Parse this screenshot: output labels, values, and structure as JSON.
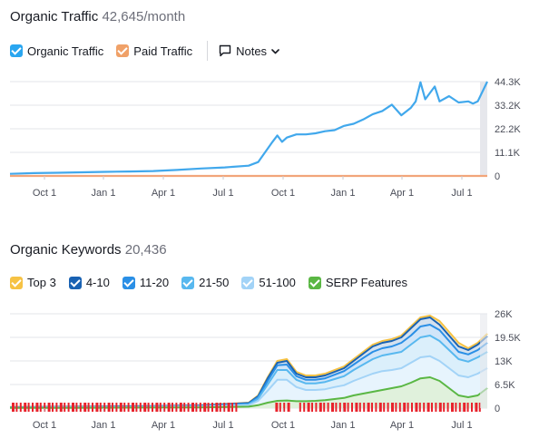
{
  "traffic": {
    "title": "Organic Traffic",
    "value": "42,645",
    "unit": "/month",
    "legend": [
      {
        "label": "Organic Traffic",
        "color": "#2aa6f0"
      },
      {
        "label": "Paid Traffic",
        "color": "#f0a168"
      }
    ],
    "notes_label": "Notes"
  },
  "keywords": {
    "title": "Organic Keywords",
    "value": "20,436",
    "legend": [
      {
        "label": "Top 3",
        "color": "#f6c244"
      },
      {
        "label": "4-10",
        "color": "#1962b3"
      },
      {
        "label": "11-20",
        "color": "#2a8fe6"
      },
      {
        "label": "21-50",
        "color": "#58b8ef"
      },
      {
        "label": "51-100",
        "color": "#a2d3f7"
      },
      {
        "label": "SERP Features",
        "color": "#5ab744"
      }
    ]
  },
  "chart_data": [
    {
      "type": "line",
      "title": "Organic Traffic",
      "x_ticks": [
        "Oct 1",
        "Jan 1",
        "Apr 1",
        "Jul 1",
        "Oct 1",
        "Jan 1",
        "Apr 1",
        "Jul 1"
      ],
      "y_ticks": [
        "44.3K",
        "33.2K",
        "22.2K",
        "11.1K",
        "0"
      ],
      "ylim": [
        0,
        44300
      ],
      "series": [
        {
          "name": "Organic Traffic",
          "color": "#41a8ec",
          "x": [
            0,
            0.05,
            0.1,
            0.15,
            0.2,
            0.25,
            0.3,
            0.35,
            0.4,
            0.45,
            0.5,
            0.52,
            0.55,
            0.56,
            0.57,
            0.58,
            0.6,
            0.62,
            0.64,
            0.66,
            0.68,
            0.7,
            0.72,
            0.74,
            0.76,
            0.78,
            0.8,
            0.82,
            0.84,
            0.85,
            0.86,
            0.87,
            0.88,
            0.89,
            0.9,
            0.92,
            0.94,
            0.96,
            0.97,
            0.98,
            1.0
          ],
          "values": [
            1000,
            1300,
            1500,
            1700,
            1900,
            2100,
            2300,
            2800,
            3500,
            4000,
            4800,
            6500,
            16000,
            19000,
            16000,
            18000,
            19500,
            19500,
            20000,
            21000,
            21500,
            23500,
            24500,
            26500,
            29000,
            30500,
            33500,
            28500,
            32000,
            35000,
            44000,
            36000,
            39000,
            42000,
            35000,
            37500,
            34500,
            35000,
            34000,
            35000,
            44300
          ]
        },
        {
          "name": "Paid Traffic",
          "color": "#f2a57a",
          "x": [
            0,
            1
          ],
          "values": [
            0,
            0
          ]
        }
      ]
    },
    {
      "type": "area",
      "title": "Organic Keywords",
      "x_ticks": [
        "Oct 1",
        "Jan 1",
        "Apr 1",
        "Jul 1",
        "Oct 1",
        "Jan 1",
        "Apr 1",
        "Jul 1"
      ],
      "y_ticks": [
        "26K",
        "19.5K",
        "13K",
        "6.5K",
        "0"
      ],
      "ylim": [
        0,
        26000
      ],
      "x": [
        0,
        0.1,
        0.2,
        0.3,
        0.4,
        0.5,
        0.52,
        0.54,
        0.56,
        0.58,
        0.6,
        0.62,
        0.64,
        0.66,
        0.68,
        0.7,
        0.72,
        0.74,
        0.76,
        0.78,
        0.8,
        0.82,
        0.84,
        0.86,
        0.88,
        0.9,
        0.92,
        0.94,
        0.96,
        0.98,
        1.0
      ],
      "series": [
        {
          "name": "Top 3",
          "color": "#f6c244",
          "values": [
            300,
            400,
            500,
            600,
            800,
            1500,
            3500,
            8500,
            13000,
            13500,
            10000,
            9000,
            9000,
            9500,
            10500,
            11500,
            13500,
            15500,
            17500,
            18500,
            19000,
            20000,
            22500,
            25000,
            25500,
            24000,
            21000,
            18000,
            16500,
            18000,
            20500
          ]
        },
        {
          "name": "4-10",
          "color": "#1962b3",
          "values": [
            250,
            350,
            450,
            550,
            750,
            1400,
            3300,
            8200,
            12500,
            13000,
            9500,
            8500,
            8500,
            9000,
            10000,
            11000,
            13000,
            15000,
            17000,
            18000,
            18500,
            19500,
            22000,
            24500,
            25000,
            23000,
            20000,
            17000,
            16000,
            17500,
            19800
          ]
        },
        {
          "name": "11-20",
          "color": "#2a8fe6",
          "values": [
            200,
            300,
            400,
            500,
            650,
            1200,
            3000,
            7500,
            11800,
            12000,
            8800,
            7800,
            7800,
            8200,
            9200,
            10200,
            12000,
            13800,
            15500,
            16500,
            17000,
            18000,
            20000,
            22500,
            23000,
            21500,
            18500,
            15500,
            14800,
            16000,
            18000
          ]
        },
        {
          "name": "21-50",
          "color": "#58b8ef",
          "values": [
            150,
            250,
            300,
            400,
            550,
            1000,
            2600,
            6500,
            10500,
            10500,
            7800,
            6800,
            6800,
            7200,
            8000,
            8800,
            10500,
            12000,
            13500,
            14500,
            15000,
            15500,
            17500,
            19500,
            20000,
            18500,
            16000,
            13500,
            12800,
            14000,
            15500
          ]
        },
        {
          "name": "51-100",
          "color": "#a2d3f7",
          "values": [
            100,
            150,
            200,
            300,
            400,
            800,
            2000,
            4800,
            7800,
            7800,
            5800,
            5000,
            5000,
            5200,
            5800,
            6300,
            7500,
            8500,
            9500,
            10200,
            10500,
            11000,
            12500,
            14000,
            14300,
            13000,
            11000,
            9000,
            8500,
            9500,
            11000
          ]
        },
        {
          "name": "SERP Features",
          "color": "#5ab744",
          "values": [
            50,
            80,
            100,
            150,
            200,
            400,
            800,
            1500,
            2000,
            2100,
            1900,
            1900,
            2000,
            2200,
            2500,
            2800,
            3500,
            4000,
            4500,
            5000,
            5500,
            6000,
            7000,
            8200,
            8500,
            7500,
            5500,
            3500,
            3000,
            3500,
            5500
          ]
        }
      ]
    }
  ]
}
